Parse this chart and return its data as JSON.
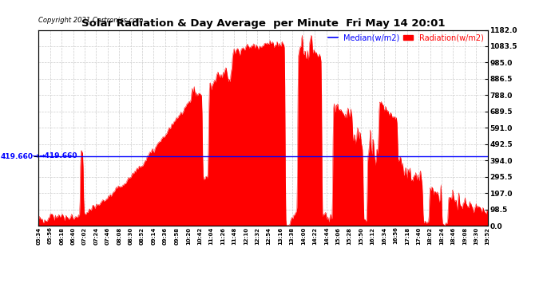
{
  "title": "Solar Radiation & Day Average  per Minute  Fri May 14 20:01",
  "copyright": "Copyright 2021 Cartronics.com",
  "median_value": 419.66,
  "median_label_str": "419.660",
  "y_ticks": [
    0.0,
    98.5,
    197.0,
    295.5,
    394.0,
    492.5,
    591.0,
    689.5,
    788.0,
    886.5,
    985.0,
    1083.5,
    1182.0
  ],
  "y_max": 1182.0,
  "y_min": 0.0,
  "background_color": "#ffffff",
  "fill_color": "#ff0000",
  "median_color": "#0000ff",
  "title_color": "#000000",
  "copyright_color": "#000000",
  "legend_median_color": "#0000ff",
  "legend_radiation_color": "#ff0000",
  "grid_color": "#cccccc",
  "median_label": "Median(w/m2)",
  "radiation_label": "Radiation(w/m2)",
  "x_tick_labels": [
    "05:34",
    "05:56",
    "06:18",
    "06:40",
    "07:02",
    "07:24",
    "07:46",
    "08:08",
    "08:30",
    "08:52",
    "09:14",
    "09:36",
    "09:58",
    "10:20",
    "10:42",
    "11:04",
    "11:26",
    "11:48",
    "12:10",
    "12:32",
    "12:54",
    "13:16",
    "13:38",
    "14:00",
    "14:22",
    "14:44",
    "15:06",
    "15:28",
    "15:50",
    "16:12",
    "16:34",
    "16:56",
    "17:18",
    "17:40",
    "18:02",
    "18:24",
    "18:46",
    "19:08",
    "19:30",
    "19:52"
  ]
}
